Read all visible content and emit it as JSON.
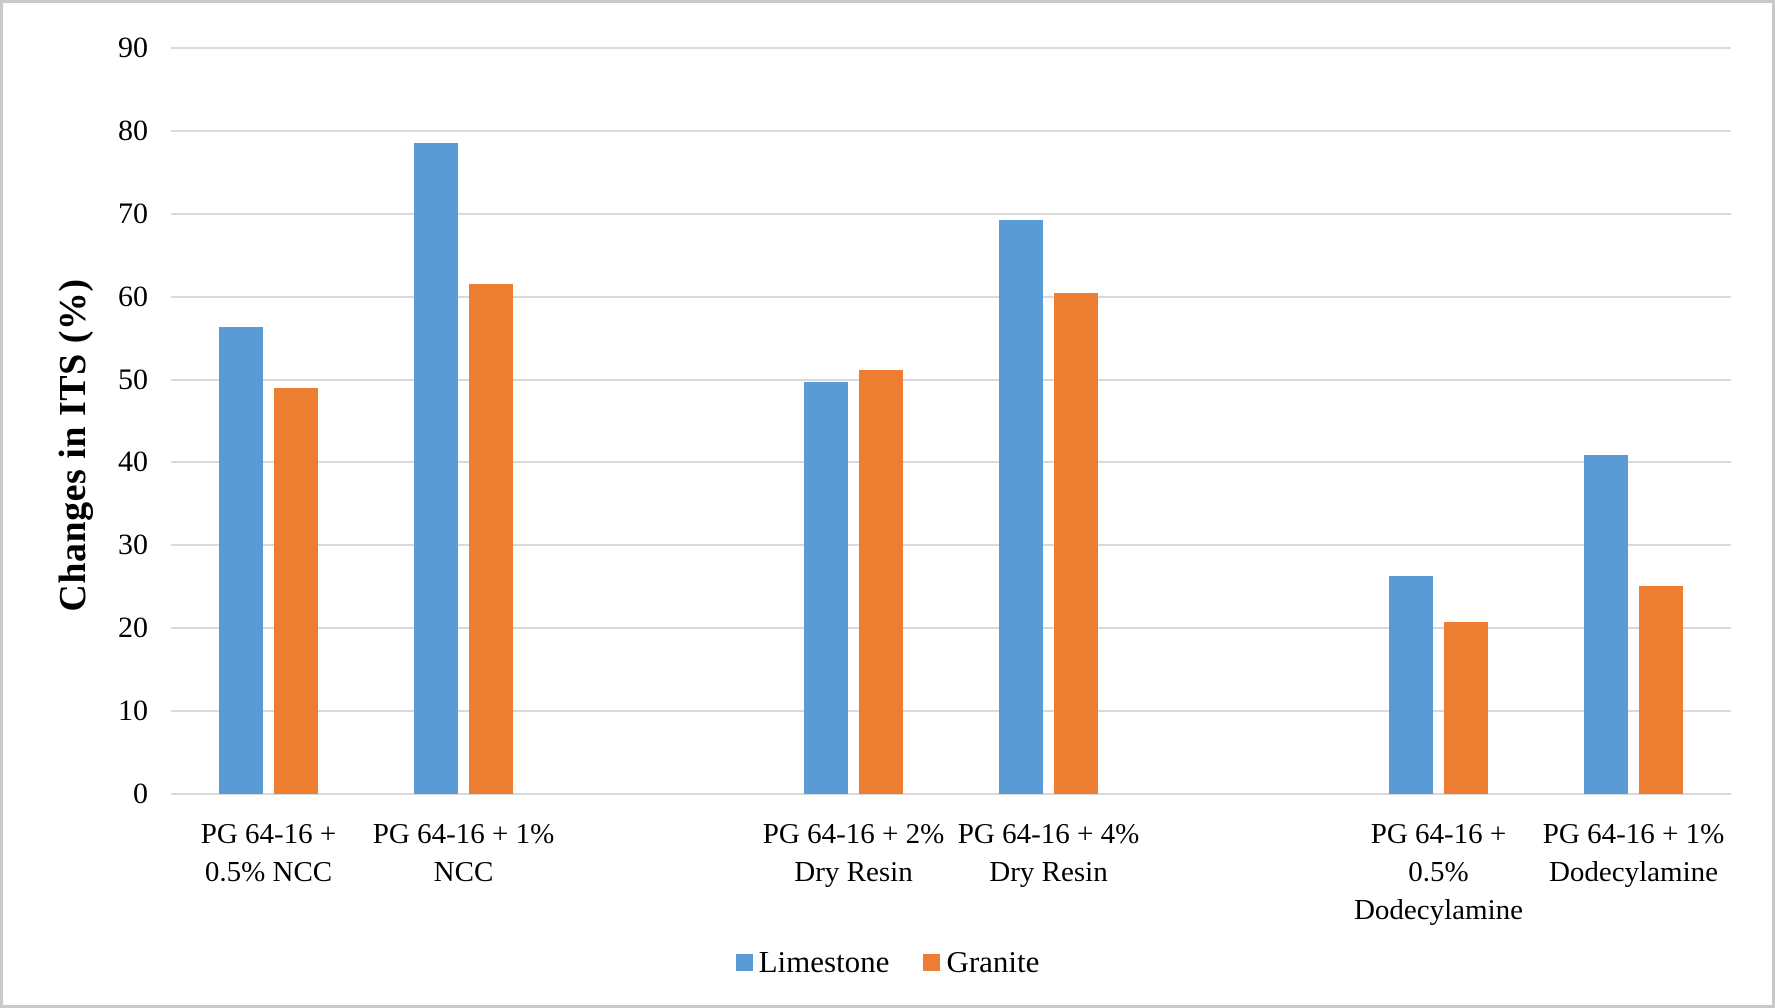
{
  "chart_data": {
    "type": "bar",
    "title": "",
    "xlabel": "",
    "ylabel": "Changes in ITS (%)",
    "ylim": [
      0,
      90
    ],
    "ytick_step": 10,
    "grid": true,
    "legend_position": "bottom",
    "gridline_color": "#d9d9d9",
    "categories": [
      "PG 64-16 +\n0.5% NCC",
      "PG 64-16 + 1%\nNCC",
      "PG 64-16 + 2%\nDry Resin",
      "PG 64-16 + 4%\nDry Resin",
      "PG 64-16 +\n0.5%\nDodecylamine",
      "PG 64-16 + 1%\nDodecylamine"
    ],
    "series": [
      {
        "name": "Limestone",
        "color": "#5b9bd5",
        "values": [
          56.4,
          78.5,
          49.7,
          69.2,
          26.3,
          40.9
        ]
      },
      {
        "name": "Granite",
        "color": "#ed7d31",
        "values": [
          49.0,
          61.5,
          51.1,
          60.5,
          20.7,
          25.1
        ]
      }
    ]
  }
}
